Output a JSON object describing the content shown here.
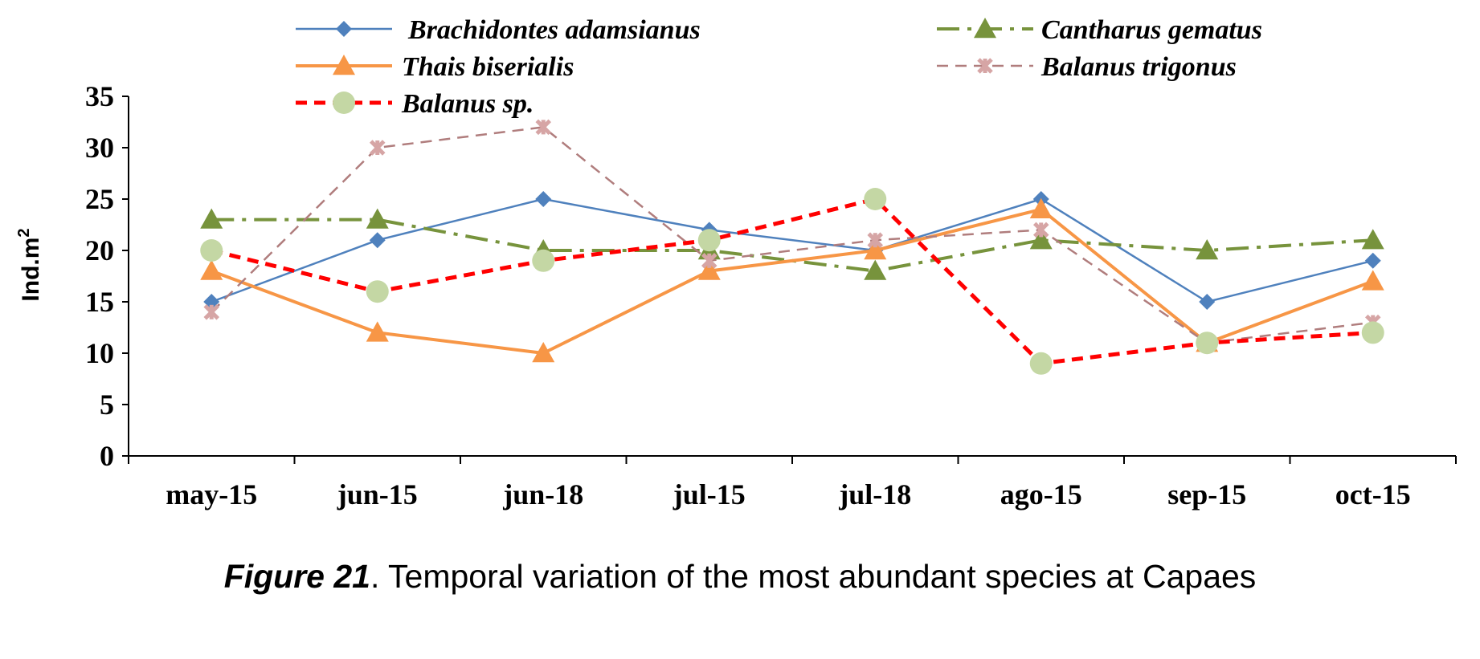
{
  "chart_data": {
    "type": "line",
    "title": "",
    "xlabel": "",
    "ylabel": "Ind.m",
    "ylabel_superscript": "2",
    "ylim": [
      0,
      35
    ],
    "yticks": [
      0,
      5,
      10,
      15,
      20,
      25,
      30,
      35
    ],
    "grid": false,
    "legend_position": "top",
    "categories": [
      "may-15",
      "jun-15",
      "jun-18",
      "jul-15",
      "jul-18",
      "ago-15",
      "sep-15",
      "oct-15"
    ],
    "series": [
      {
        "name": "Brachidontes adamsianus",
        "color": "#4f81bd",
        "marker": "diamond",
        "dash": "solid",
        "values": [
          15,
          21,
          25,
          22,
          20,
          25,
          15,
          19
        ]
      },
      {
        "name": "Cantharus gematus",
        "color": "#77933c",
        "marker": "triangle",
        "dash": "dashdot",
        "values": [
          23,
          23,
          20,
          20,
          18,
          21,
          20,
          21
        ]
      },
      {
        "name": "Thais biserialis",
        "color": "#f79646",
        "marker": "triangle",
        "dash": "solid",
        "values": [
          18,
          12,
          10,
          18,
          20,
          24,
          11,
          17
        ]
      },
      {
        "name": "Balanus trigonus",
        "color": "#b07d7d",
        "marker": "star",
        "dash": "dash",
        "values": [
          14,
          30,
          32,
          19,
          21,
          22,
          11,
          13
        ]
      },
      {
        "name": "Balanus sp.",
        "color": "#ff0000",
        "marker": "circle",
        "dash": "dash",
        "marker_color": "#c4d7a4",
        "values": [
          20,
          16,
          19,
          21,
          25,
          9,
          11,
          12
        ]
      }
    ]
  },
  "caption": {
    "figure_label": "Figure 21",
    "text": ". Temporal variation of the most abundant species at Capaes"
  }
}
